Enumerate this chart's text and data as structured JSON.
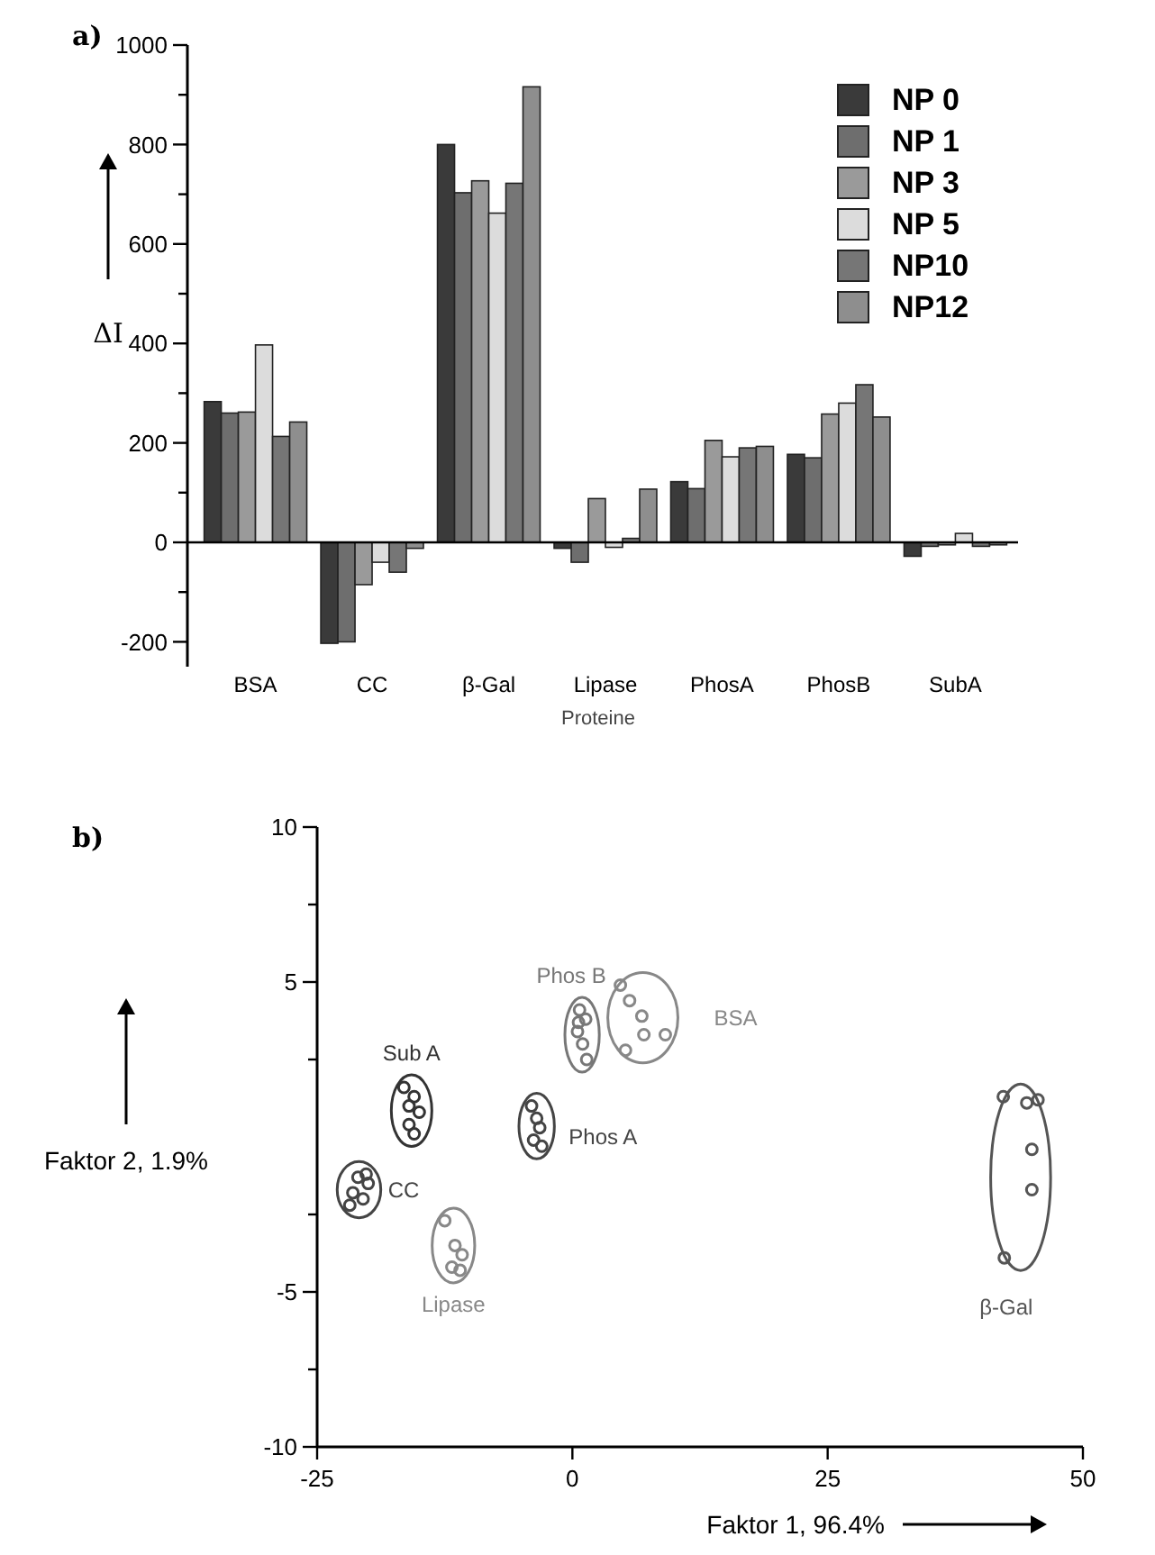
{
  "chart_data": [
    {
      "type": "bar",
      "title": "a)",
      "xlabel": "Proteine",
      "ylabel": "ΔI",
      "categories": [
        "BSA",
        "CC",
        "β-Gal",
        "Lipase",
        "PhosA",
        "PhosB",
        "SubA"
      ],
      "series": [
        {
          "name": "NP 0",
          "color": "#3a3a3a",
          "values": [
            283,
            -203,
            800,
            -12,
            122,
            177,
            -28
          ]
        },
        {
          "name": "NP 1",
          "color": "#6e6e6e",
          "values": [
            260,
            -200,
            703,
            -40,
            108,
            170,
            -8
          ]
        },
        {
          "name": "NP 3",
          "color": "#9a9a9a",
          "values": [
            262,
            -85,
            727,
            88,
            205,
            258,
            -5
          ]
        },
        {
          "name": "NP 5",
          "color": "#dcdcdc",
          "values": [
            397,
            -40,
            662,
            -10,
            172,
            280,
            18
          ]
        },
        {
          "name": "NP10",
          "color": "#767676",
          "values": [
            213,
            -60,
            722,
            8,
            190,
            317,
            -8
          ]
        },
        {
          "name": "NP12",
          "color": "#8e8e8e",
          "values": [
            242,
            -12,
            916,
            107,
            193,
            252,
            -5
          ]
        }
      ],
      "ylim": [
        -250,
        1000
      ],
      "yticks": [
        -200,
        {
          "value": -100,
          "label": null
        },
        0,
        {
          "value": 100,
          "label": null
        },
        200,
        {
          "value": 300,
          "label": null
        },
        400,
        {
          "value": 500,
          "label": null
        },
        600,
        {
          "value": 700,
          "label": null
        },
        800,
        {
          "value": 900,
          "label": null
        },
        1000
      ],
      "legend": "top right"
    },
    {
      "type": "scatter",
      "title": "b)",
      "xlabel": "Faktor 1, 96.4%",
      "ylabel": "Faktor 2, 1.9%",
      "marker": "circle",
      "xlim": [
        -25,
        50
      ],
      "xticks": [
        -25,
        0,
        25,
        50
      ],
      "ylim": [
        -10,
        10
      ],
      "yticks": [
        -10,
        {
          "value": -7.5,
          "label": null
        },
        -5,
        {
          "value": -2.5,
          "label": null
        },
        {
          "value": 2.5,
          "label": null
        },
        5,
        {
          "value": 7.5,
          "label": null
        },
        10
      ],
      "series": [
        {
          "name": "Sub A",
          "color": "#333333",
          "x": [
            -16.5,
            -15.5,
            -16,
            -15,
            -16,
            -15.5
          ],
          "values": [
            1.6,
            1.3,
            1.0,
            0.8,
            0.4,
            0.1
          ]
        },
        {
          "name": "CC",
          "color": "#444444",
          "x": [
            -21,
            -20,
            -21.5,
            -20.5,
            -21.8,
            -20.2
          ],
          "values": [
            -1.3,
            -1.5,
            -1.8,
            -2.0,
            -2.2,
            -1.2
          ]
        },
        {
          "name": "Phos A",
          "color": "#444444",
          "x": [
            -4,
            -3.5,
            -3.2,
            -3.8,
            -3.0
          ],
          "values": [
            1.0,
            0.6,
            0.3,
            -0.1,
            -0.3
          ]
        },
        {
          "name": "Lipase",
          "color": "#888888",
          "x": [
            -12.5,
            -11.5,
            -10.8,
            -11.8,
            -11
          ],
          "values": [
            -2.7,
            -3.5,
            -3.8,
            -4.2,
            -4.3
          ]
        },
        {
          "name": "Phos B",
          "color": "#777777",
          "x": [
            0.7,
            1.3,
            0.5,
            1.0,
            1.4,
            0.6
          ],
          "values": [
            4.1,
            3.8,
            3.4,
            3.0,
            2.5,
            3.7
          ]
        },
        {
          "name": "BSA",
          "color": "#888888",
          "x": [
            4.7,
            5.6,
            6.8,
            7.0,
            9.1,
            5.2
          ],
          "values": [
            4.9,
            4.4,
            3.9,
            3.3,
            3.3,
            2.8
          ]
        },
        {
          "name": "β-Gal",
          "color": "#555555",
          "x": [
            42.2,
            44.5,
            45.6,
            45,
            45,
            42.3
          ],
          "values": [
            1.3,
            1.1,
            1.2,
            -0.4,
            -1.7,
            -3.9
          ]
        }
      ]
    }
  ]
}
